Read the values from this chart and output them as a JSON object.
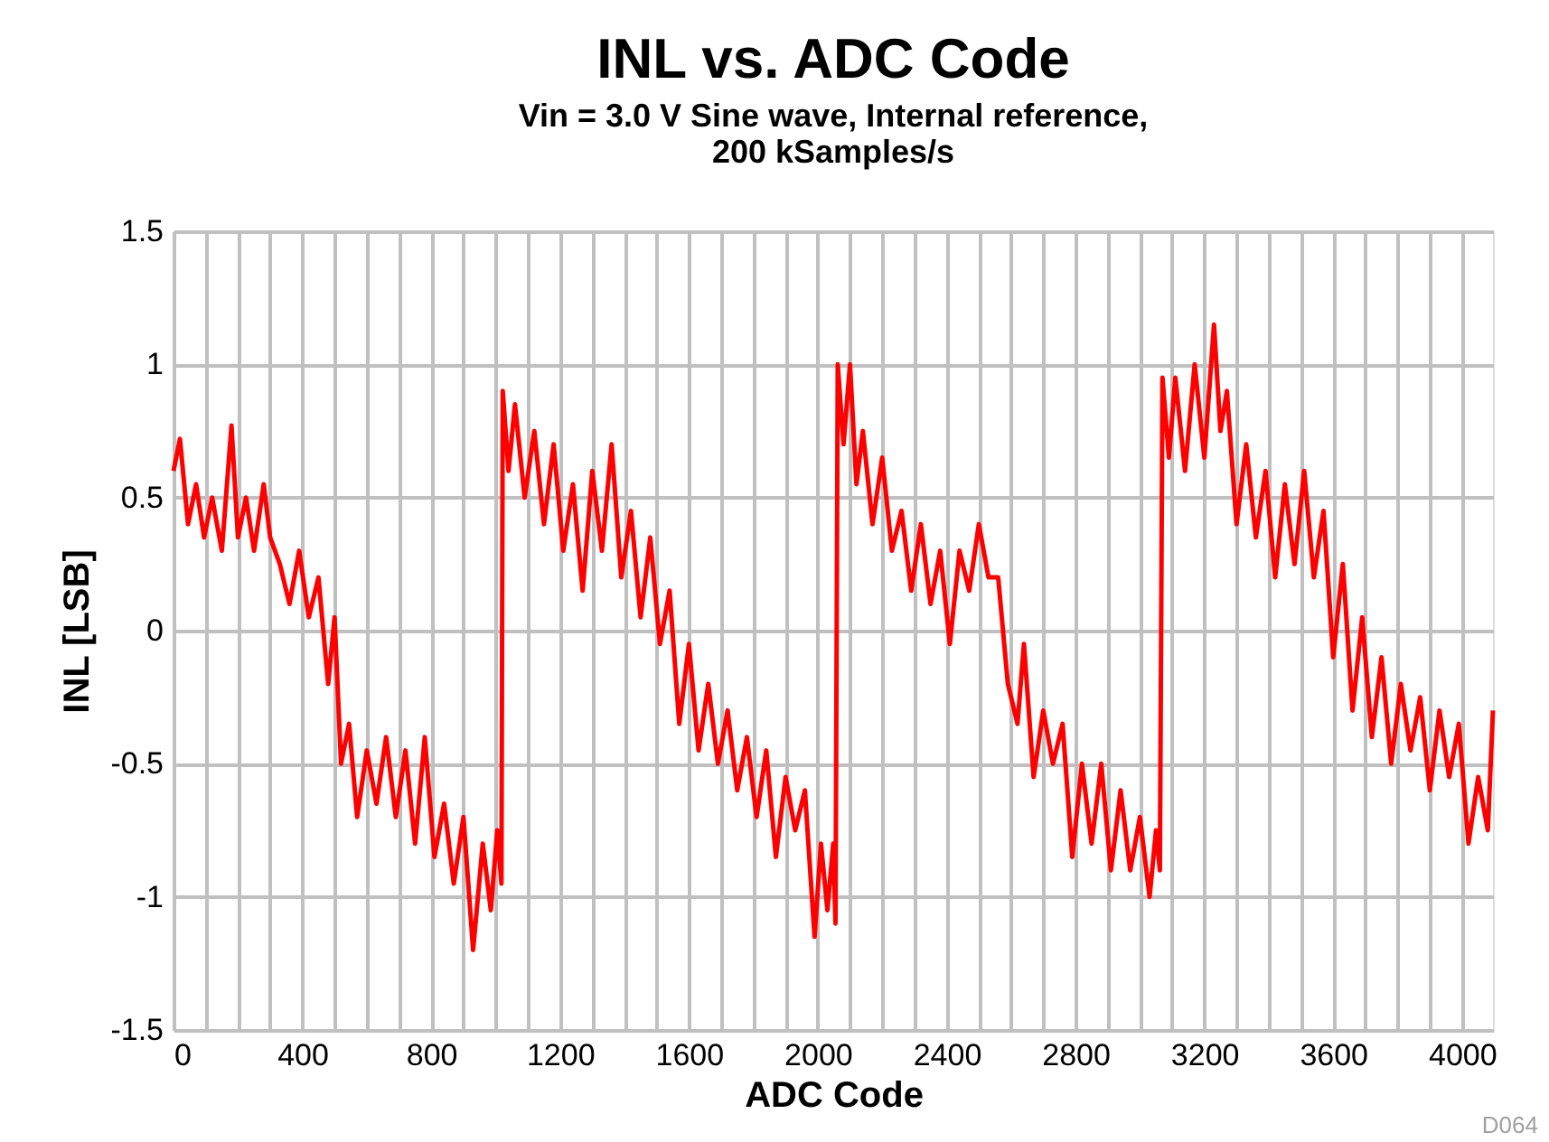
{
  "chart_data": {
    "type": "line",
    "title": "INL vs. ADC Code",
    "subtitle": "Vin = 3.0 V Sine wave, Internal reference,\n200 kSamples/s",
    "xlabel": "ADC Code",
    "ylabel": "INL [LSB]",
    "annotations": [
      "D064"
    ],
    "xlim": [
      0,
      4096
    ],
    "ylim": [
      -1.5,
      1.5
    ],
    "yticks": [
      -1.5,
      -1,
      -0.5,
      0,
      0.5,
      1,
      1.5
    ],
    "xticks": [
      0,
      {
        "value": 100,
        "label": null
      },
      {
        "value": 200,
        "label": null
      },
      {
        "value": 300,
        "label": null
      },
      400,
      {
        "value": 500,
        "label": null
      },
      {
        "value": 600,
        "label": null
      },
      {
        "value": 700,
        "label": null
      },
      800,
      {
        "value": 900,
        "label": null
      },
      {
        "value": 1000,
        "label": null
      },
      {
        "value": 1100,
        "label": null
      },
      1200,
      {
        "value": 1300,
        "label": null
      },
      {
        "value": 1400,
        "label": null
      },
      {
        "value": 1500,
        "label": null
      },
      1600,
      {
        "value": 1700,
        "label": null
      },
      {
        "value": 1800,
        "label": null
      },
      {
        "value": 1900,
        "label": null
      },
      2000,
      {
        "value": 2100,
        "label": null
      },
      {
        "value": 2200,
        "label": null
      },
      {
        "value": 2300,
        "label": null
      },
      2400,
      {
        "value": 2500,
        "label": null
      },
      {
        "value": 2600,
        "label": null
      },
      {
        "value": 2700,
        "label": null
      },
      2800,
      {
        "value": 2900,
        "label": null
      },
      {
        "value": 3000,
        "label": null
      },
      {
        "value": 3100,
        "label": null
      },
      3200,
      {
        "value": 3300,
        "label": null
      },
      {
        "value": 3400,
        "label": null
      },
      {
        "value": 3500,
        "label": null
      },
      3600,
      {
        "value": 3700,
        "label": null
      },
      {
        "value": 3800,
        "label": null
      },
      {
        "value": 3900,
        "label": null
      },
      4000
    ],
    "grid": true,
    "legend": false,
    "marker": "none",
    "line_style": "solid",
    "x": [
      0,
      20,
      45,
      70,
      95,
      120,
      150,
      180,
      200,
      225,
      250,
      280,
      300,
      330,
      360,
      390,
      420,
      450,
      480,
      500,
      520,
      545,
      570,
      600,
      630,
      660,
      690,
      720,
      750,
      780,
      810,
      840,
      870,
      900,
      930,
      960,
      985,
      1005,
      1018,
      1022,
      1040,
      1060,
      1090,
      1120,
      1150,
      1180,
      1210,
      1240,
      1270,
      1300,
      1330,
      1360,
      1390,
      1420,
      1450,
      1480,
      1510,
      1540,
      1570,
      1600,
      1630,
      1660,
      1690,
      1720,
      1750,
      1780,
      1810,
      1840,
      1870,
      1900,
      1930,
      1960,
      1990,
      2010,
      2030,
      2048,
      2055,
      2062,
      2080,
      2100,
      2120,
      2140,
      2170,
      2200,
      2230,
      2260,
      2290,
      2320,
      2350,
      2380,
      2410,
      2440,
      2470,
      2500,
      2530,
      2560,
      2590,
      2620,
      2640,
      2670,
      2700,
      2730,
      2760,
      2790,
      2820,
      2850,
      2880,
      2910,
      2940,
      2970,
      3000,
      3030,
      3050,
      3062,
      3070,
      3090,
      3110,
      3140,
      3170,
      3200,
      3230,
      3250,
      3270,
      3300,
      3330,
      3360,
      3390,
      3420,
      3450,
      3480,
      3510,
      3540,
      3570,
      3600,
      3630,
      3660,
      3690,
      3720,
      3750,
      3780,
      3810,
      3840,
      3870,
      3900,
      3930,
      3960,
      3990,
      4020,
      4050,
      4080,
      4096
    ],
    "series": [
      {
        "color": "#ff0000",
        "values": [
          0.6,
          0.72,
          0.4,
          0.55,
          0.35,
          0.5,
          0.3,
          0.77,
          0.35,
          0.5,
          0.3,
          0.55,
          0.35,
          0.25,
          0.1,
          0.3,
          0.05,
          0.2,
          -0.2,
          0.05,
          -0.5,
          -0.35,
          -0.7,
          -0.45,
          -0.65,
          -0.4,
          -0.7,
          -0.45,
          -0.8,
          -0.4,
          -0.85,
          -0.65,
          -0.95,
          -0.7,
          -1.2,
          -0.8,
          -1.05,
          -0.75,
          -0.95,
          0.9,
          0.6,
          0.85,
          0.5,
          0.75,
          0.4,
          0.7,
          0.3,
          0.55,
          0.15,
          0.6,
          0.3,
          0.7,
          0.2,
          0.45,
          0.05,
          0.35,
          -0.05,
          0.15,
          -0.35,
          -0.05,
          -0.45,
          -0.2,
          -0.5,
          -0.3,
          -0.6,
          -0.4,
          -0.7,
          -0.45,
          -0.85,
          -0.55,
          -0.75,
          -0.6,
          -1.15,
          -0.8,
          -1.05,
          -0.8,
          -1.1,
          1.0,
          0.7,
          1.0,
          0.55,
          0.75,
          0.4,
          0.65,
          0.3,
          0.45,
          0.15,
          0.4,
          0.1,
          0.3,
          -0.05,
          0.3,
          0.15,
          0.4,
          0.2,
          0.2,
          -0.2,
          -0.35,
          -0.05,
          -0.55,
          -0.3,
          -0.5,
          -0.35,
          -0.85,
          -0.5,
          -0.8,
          -0.5,
          -0.9,
          -0.6,
          -0.9,
          -0.7,
          -1.0,
          -0.75,
          -0.9,
          0.95,
          0.65,
          0.95,
          0.6,
          1.0,
          0.65,
          1.15,
          0.75,
          0.9,
          0.4,
          0.7,
          0.35,
          0.6,
          0.2,
          0.55,
          0.25,
          0.6,
          0.2,
          0.45,
          -0.1,
          0.25,
          -0.3,
          0.05,
          -0.4,
          -0.1,
          -0.5,
          -0.2,
          -0.45,
          -0.25,
          -0.6,
          -0.3,
          -0.55,
          -0.35,
          -0.8,
          -0.55,
          -0.75,
          -0.3
        ]
      }
    ]
  }
}
